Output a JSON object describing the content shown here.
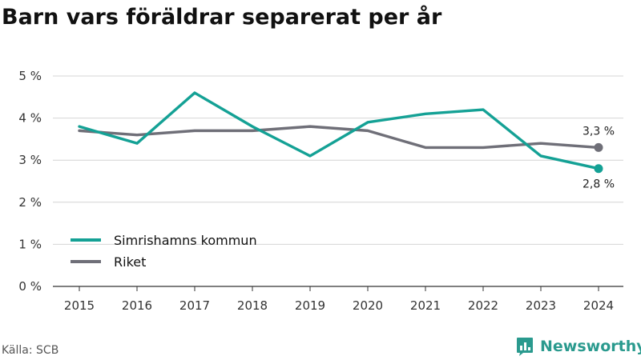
{
  "title": "Barn vars föräldrar separerat per år",
  "source": "Källa: SCB",
  "brand": {
    "name": "Newsworthy",
    "icon": "newsworthy-logo-icon",
    "color": "#2a9a8e"
  },
  "chart_data": {
    "type": "line",
    "title": "Barn vars föräldrar separerat per år",
    "xlabel": "",
    "ylabel": "",
    "x": [
      "2015",
      "2016",
      "2017",
      "2018",
      "2019",
      "2020",
      "2021",
      "2022",
      "2023",
      "2024"
    ],
    "ylim": [
      0,
      5
    ],
    "yticks": [
      0,
      1,
      2,
      3,
      4,
      5
    ],
    "ytick_labels": [
      "0 %",
      "1 %",
      "2 %",
      "3 %",
      "4 %",
      "5 %"
    ],
    "grid": "horizontal",
    "legend_position": "bottom-left",
    "series": [
      {
        "name": "Simrishamns kommun",
        "color": "#14a195",
        "values": [
          3.8,
          3.4,
          4.6,
          3.8,
          3.1,
          3.9,
          4.1,
          4.2,
          3.1,
          2.8
        ],
        "end_label": "2,8 %"
      },
      {
        "name": "Riket",
        "color": "#6f6f78",
        "values": [
          3.7,
          3.6,
          3.7,
          3.7,
          3.8,
          3.7,
          3.3,
          3.3,
          3.4,
          3.3
        ],
        "end_label": "3,3 %"
      }
    ]
  }
}
